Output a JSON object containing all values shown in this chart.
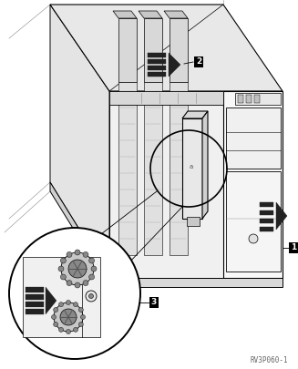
{
  "bg_color": "#ffffff",
  "lc": "#000000",
  "gray1": "#f5f5f5",
  "gray2": "#e0e0e0",
  "gray3": "#c8c8c8",
  "gray4": "#b0b0b0",
  "gray5": "#909090",
  "caption": "RV3P060-1",
  "fig_width": 3.27,
  "fig_height": 4.05,
  "dpi": 100
}
